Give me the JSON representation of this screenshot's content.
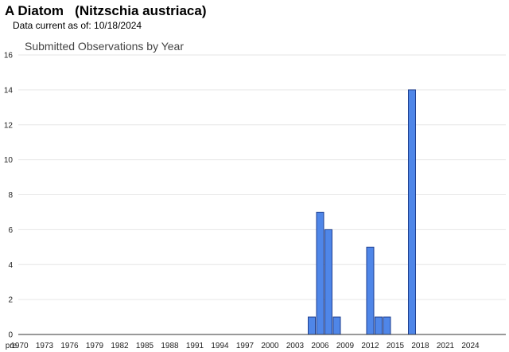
{
  "header": {
    "title": "A Diatom   (Nitzschia austriaca)",
    "data_current": "Data current as of: 10/18/2024"
  },
  "chart_data": {
    "type": "bar",
    "title": "Submitted Observations by Year",
    "xlabel": "",
    "ylabel": "",
    "ylim": [
      0,
      16
    ],
    "yticks": [
      0,
      2,
      4,
      6,
      8,
      10,
      12,
      14,
      16
    ],
    "grid": true,
    "bar_color": "#4f86e8",
    "bar_edge_color": "#1f3f8f",
    "categories": [
      "pre",
      "1970",
      "1971",
      "1972",
      "1973",
      "1974",
      "1975",
      "1976",
      "1977",
      "1978",
      "1979",
      "1980",
      "1981",
      "1982",
      "1983",
      "1984",
      "1985",
      "1986",
      "1987",
      "1988",
      "1989",
      "1990",
      "1991",
      "1992",
      "1993",
      "1994",
      "1995",
      "1996",
      "1997",
      "1998",
      "1999",
      "2000",
      "2001",
      "2002",
      "2003",
      "2004",
      "2005",
      "2006",
      "2007",
      "2008",
      "2009",
      "2010",
      "2011",
      "2012",
      "2013",
      "2014",
      "2015",
      "2016",
      "2017",
      "2018",
      "2019",
      "2020",
      "2021",
      "2022",
      "2023",
      "2024"
    ],
    "tick_labels": [
      "pre",
      "1970",
      "1973",
      "1976",
      "1979",
      "1982",
      "1985",
      "1988",
      "1991",
      "1994",
      "1997",
      "2000",
      "2003",
      "2006",
      "2009",
      "2012",
      "2015",
      "2018",
      "2021",
      "2024"
    ],
    "values": [
      0,
      0,
      0,
      0,
      0,
      0,
      0,
      0,
      0,
      0,
      0,
      0,
      0,
      0,
      0,
      0,
      0,
      0,
      0,
      0,
      0,
      0,
      0,
      0,
      0,
      0,
      0,
      0,
      0,
      0,
      0,
      0,
      0,
      0,
      0,
      0,
      1,
      7,
      6,
      1,
      0,
      0,
      0,
      5,
      1,
      1,
      0,
      0,
      14,
      0,
      0,
      0,
      0,
      0,
      0,
      0
    ]
  }
}
